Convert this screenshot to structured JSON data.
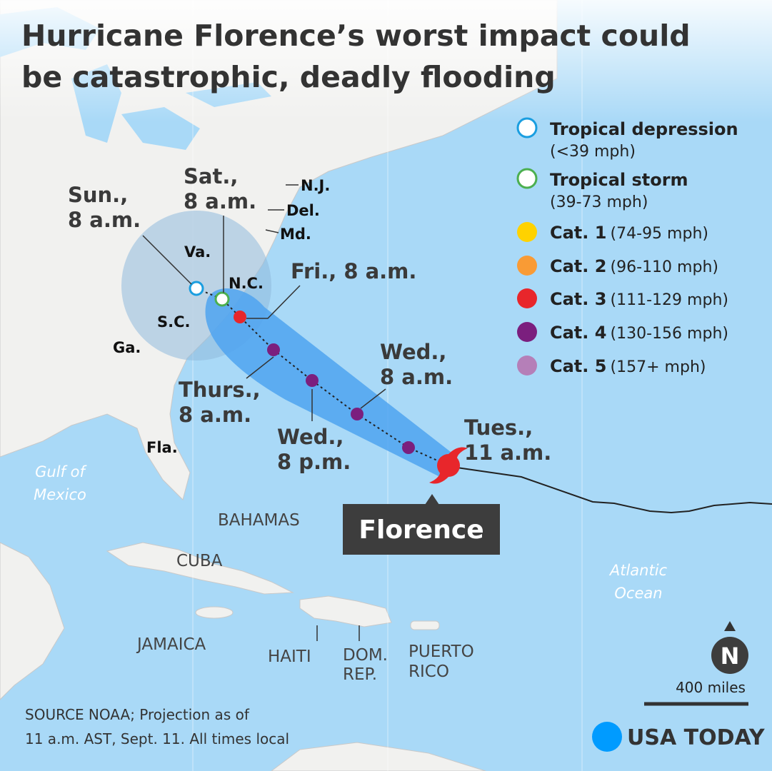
{
  "header": {
    "title": [
      "Hurricane Florence’s worst impact could",
      "be catastrophic, deadly flooding"
    ]
  },
  "legend": [
    {
      "label": "Tropical depression",
      "range": "(<39 mph)"
    },
    {
      "label": "Tropical storm",
      "range": "(39-73 mph)"
    },
    {
      "label": "Cat. 1",
      "range": "(74-95 mph)"
    },
    {
      "label": "Cat. 2",
      "range": "(96-110 mph)"
    },
    {
      "label": "Cat. 3",
      "range": "(111-129 mph)"
    },
    {
      "label": "Cat. 4",
      "range": "(130-156 mph)"
    },
    {
      "label": "Cat. 5",
      "range": "(157+ mph)"
    }
  ],
  "track_labels": [
    [
      "Sun.,",
      "8 a.m."
    ],
    [
      "Sat.,",
      "8 a.m."
    ],
    [
      "Fri., 8 a.m."
    ],
    [
      "Thurs.,",
      "8 a.m."
    ],
    [
      "Wed.,",
      "8 p.m."
    ],
    [
      "Wed.,",
      "8 a.m."
    ],
    [
      "Tues.,",
      "11 a.m."
    ]
  ],
  "states": [
    "Va.",
    "N.C.",
    "S.C.",
    "Ga.",
    "Fla.",
    "N.J.",
    "Del.",
    "Md."
  ],
  "places": [
    "BAHAMAS",
    "CUBA",
    "JAMAICA",
    "HAITI",
    [
      "DOM.",
      "REP."
    ],
    [
      "PUERTO",
      "RICO"
    ]
  ],
  "waters": [
    [
      "Gulf of",
      "Mexico"
    ],
    [
      "Atlantic",
      "Ocean"
    ]
  ],
  "storm_name": "Florence",
  "compass": "N",
  "scale": "400 miles",
  "source": [
    "SOURCE NOAA; Projection as of",
    "11 a.m. AST, Sept. 11. All times local"
  ],
  "logo": "USA TODAY"
}
